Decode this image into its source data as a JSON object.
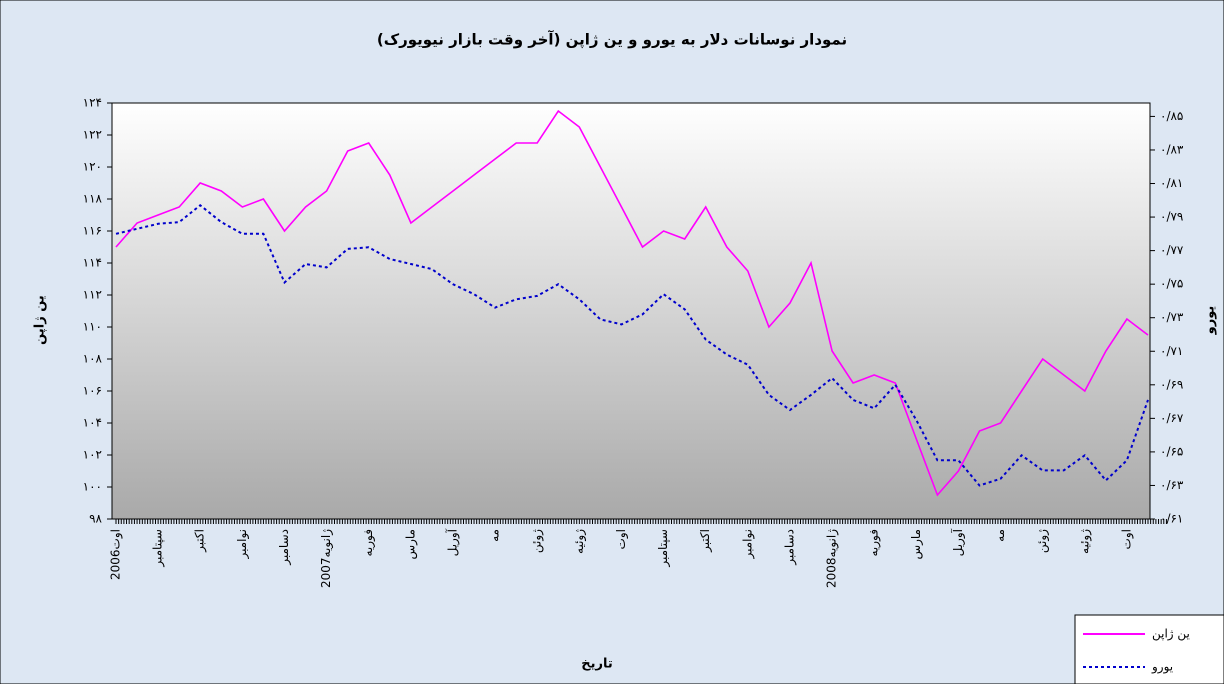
{
  "chart_data": {
    "type": "line",
    "title": "نمودار نوسانات دلار به یورو و ین ژاپن (آخر وقت بازار نیویورک)",
    "x_label": "تاریخ",
    "y_label": "ین ژاپن",
    "y2_label": "یورو",
    "categories": [
      "اوت2006",
      null,
      "سپتامبر",
      null,
      "اکتبر",
      null,
      "نوامبر",
      null,
      "دسامبر",
      null,
      "ژانویه2007",
      null,
      "فوریه",
      null,
      "مارس",
      null,
      "آوریل",
      null,
      "مه",
      null,
      "ژوئن",
      null,
      "ژوئیه",
      null,
      "اوت",
      null,
      "سپتامبر",
      null,
      "اکتبر",
      null,
      "نوامبر",
      null,
      "دسامبر",
      null,
      "ژانویه2008",
      null,
      "فوریه",
      null,
      "مارس",
      null,
      "آوریل",
      null,
      "مه",
      null,
      "ژوئن",
      null,
      "ژوئیه",
      null,
      "اوت",
      null
    ],
    "series": [
      {
        "name": "ین ژاپن",
        "color": "#ff00ff",
        "dash": false,
        "axis": "y",
        "values": [
          115,
          116.5,
          117,
          117.5,
          119,
          118.5,
          117.5,
          118,
          116,
          117.5,
          118.5,
          121,
          121.5,
          119.5,
          116.5,
          117.5,
          118.5,
          119.5,
          120.5,
          121.5,
          121.5,
          123.5,
          122.5,
          120,
          117.5,
          115,
          116,
          115.5,
          117.5,
          115,
          113.5,
          110,
          111.5,
          114,
          108.5,
          106.5,
          107,
          106.5,
          103,
          99.5,
          101,
          103.5,
          104,
          106,
          108,
          107,
          106,
          108.5,
          110.5,
          109.5
        ]
      },
      {
        "name": "یورو",
        "color": "#0000cc",
        "dash": true,
        "axis": "y2",
        "values": [
          0.78,
          0.783,
          0.786,
          0.787,
          0.797,
          0.787,
          0.78,
          0.78,
          0.751,
          0.762,
          0.76,
          0.771,
          0.772,
          0.765,
          0.762,
          0.759,
          0.75,
          0.744,
          0.736,
          0.741,
          0.743,
          0.75,
          0.741,
          0.729,
          0.726,
          0.732,
          0.744,
          0.735,
          0.717,
          0.708,
          0.702,
          0.684,
          0.675,
          0.684,
          0.694,
          0.681,
          0.676,
          0.69,
          0.669,
          0.645,
          0.645,
          0.63,
          0.634,
          0.648,
          0.639,
          0.639,
          0.648,
          0.633,
          0.645,
          0.681
        ]
      }
    ],
    "ylim": [
      98,
      124
    ],
    "yticks": [
      {
        "value": 98,
        "label": "۹۸"
      },
      {
        "value": 100,
        "label": "۱۰۰"
      },
      {
        "value": 102,
        "label": "۱۰۲"
      },
      {
        "value": 104,
        "label": "۱۰۴"
      },
      {
        "value": 106,
        "label": "۱۰۶"
      },
      {
        "value": 108,
        "label": "۱۰۸"
      },
      {
        "value": 110,
        "label": "۱۱۰"
      },
      {
        "value": 112,
        "label": "۱۱۲"
      },
      {
        "value": 114,
        "label": "۱۱۴"
      },
      {
        "value": 116,
        "label": "۱۱۶"
      },
      {
        "value": 118,
        "label": "۱۱۸"
      },
      {
        "value": 120,
        "label": "۱۲۰"
      },
      {
        "value": 122,
        "label": "۱۲۲"
      },
      {
        "value": 124,
        "label": "۱۲۴"
      }
    ],
    "y2lim": [
      0.61,
      0.858
    ],
    "y2ticks": [
      {
        "value": 0.61,
        "label": "۰/۶۱"
      },
      {
        "value": 0.63,
        "label": "۰/۶۳"
      },
      {
        "value": 0.65,
        "label": "۰/۶۵"
      },
      {
        "value": 0.67,
        "label": "۰/۶۷"
      },
      {
        "value": 0.69,
        "label": "۰/۶۹"
      },
      {
        "value": 0.71,
        "label": "۰/۷۱"
      },
      {
        "value": 0.73,
        "label": "۰/۷۳"
      },
      {
        "value": 0.75,
        "label": "۰/۷۵"
      },
      {
        "value": 0.77,
        "label": "۰/۷۷"
      },
      {
        "value": 0.79,
        "label": "۰/۷۹"
      },
      {
        "value": 0.81,
        "label": "۰/۸۱"
      },
      {
        "value": 0.83,
        "label": "۰/۸۳"
      },
      {
        "value": 0.85,
        "label": "۰/۸۵"
      }
    ],
    "grid": false,
    "legend": "bottom-right"
  }
}
